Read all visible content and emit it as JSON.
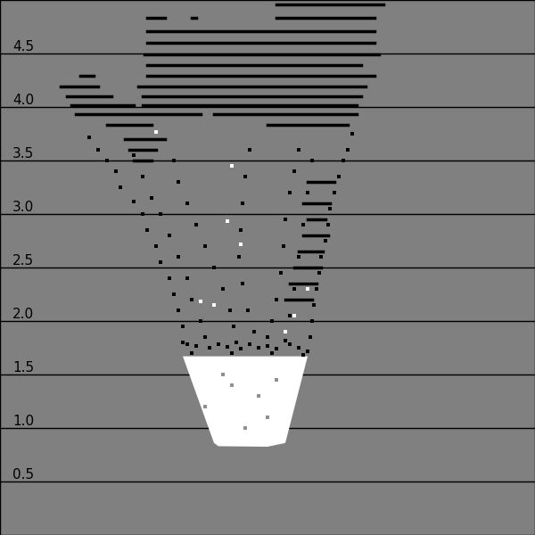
{
  "chart_data": {
    "type": "scatter",
    "tick_labels": "y",
    "grid": true,
    "xlim": [
      0,
      600
    ],
    "ylim": [
      0,
      5
    ],
    "yticks": [
      0.5,
      {
        "value": 1,
        "label": "1.0"
      },
      1.5,
      {
        "value": 2,
        "label": "2.0"
      },
      2.5,
      {
        "value": 3,
        "label": "3.0"
      },
      3.5,
      {
        "value": 4,
        "label": "4.0"
      },
      4.5
    ],
    "series": [
      {
        "type": "area",
        "color": "#ffffff",
        "x": [
          205,
          345,
          320,
          300,
          245,
          240
        ],
        "y": [
          1.67,
          1.67,
          0.86,
          0.825,
          0.83,
          0.86
        ]
      },
      {
        "type": "scatter",
        "color": "#909090",
        "marker": "s",
        "x": [
          260,
          290,
          230,
          300,
          275,
          250,
          310
        ],
        "y": [
          1.4,
          1.3,
          1.2,
          1.1,
          1.0,
          1.5,
          1.45
        ]
      },
      {
        "type": "line",
        "color": "#000000",
        "line_style": "solid",
        "x": [
          310,
          430,
          null,
          165,
          185,
          null,
          215,
          220,
          null,
          310,
          420,
          null,
          165,
          420,
          null,
          165,
          420,
          null,
          162,
          425,
          null,
          165,
          405,
          null,
          90,
          105,
          null,
          165,
          420,
          null,
          68,
          110,
          null,
          155,
          410,
          null,
          75,
          125,
          null,
          160,
          405,
          null,
          80,
          150,
          null,
          160,
          400,
          null,
          85,
          225,
          null,
          240,
          400,
          null,
          120,
          170,
          null,
          300,
          390,
          null,
          345,
          375,
          null,
          340,
          370,
          null,
          345,
          365,
          null,
          340,
          368,
          null,
          335,
          362,
          null,
          330,
          360,
          null,
          325,
          355,
          null,
          320,
          350,
          null,
          140,
          185,
          null,
          145,
          175,
          null,
          150,
          170
        ],
        "y": [
          4.958,
          4.958,
          null,
          4.833,
          4.833,
          null,
          4.833,
          4.833,
          null,
          4.833,
          4.833,
          null,
          4.708,
          4.708,
          null,
          4.6,
          4.6,
          null,
          4.49,
          4.49,
          null,
          4.392,
          4.392,
          null,
          4.29,
          4.29,
          null,
          4.29,
          4.29,
          null,
          4.19,
          4.19,
          null,
          4.19,
          4.19,
          null,
          4.1,
          4.1,
          null,
          4.1,
          4.1,
          null,
          4.017,
          4.017,
          null,
          4.017,
          4.017,
          null,
          3.933,
          3.933,
          null,
          3.933,
          3.933,
          null,
          3.833,
          3.833,
          null,
          3.833,
          3.833,
          null,
          3.3,
          3.3,
          null,
          3.1,
          3.1,
          null,
          2.95,
          2.95,
          null,
          2.8,
          2.8,
          null,
          2.65,
          2.65,
          null,
          2.5,
          2.5,
          null,
          2.35,
          2.35,
          null,
          2.2,
          2.2,
          null,
          3.7,
          3.7,
          null,
          3.6,
          3.6,
          null,
          3.5,
          3.5
        ]
      },
      {
        "type": "scatter",
        "color": "#000000",
        "marker": "s",
        "x": [
          100,
          110,
          120,
          130,
          135,
          150,
          160,
          165,
          175,
          180,
          190,
          195,
          200,
          205,
          205,
          395,
          390,
          385,
          380,
          375,
          370,
          368,
          365,
          360,
          358,
          355,
          352,
          350,
          348,
          345,
          150,
          160,
          170,
          180,
          190,
          200,
          210,
          215,
          225,
          230,
          195,
          200,
          210,
          220,
          230,
          240,
          250,
          258,
          262,
          265,
          280,
          275,
          272,
          270,
          268,
          272,
          278,
          285,
          335,
          330,
          325,
          320,
          318,
          315,
          310,
          305,
          300,
          350,
          345,
          340,
          335,
          330,
          325,
          320,
          210,
          220,
          235,
          245,
          255,
          270,
          280,
          290,
          300,
          310,
          325,
          335,
          215,
          260,
          305,
          340
        ],
        "y": [
          3.72,
          3.6,
          3.5,
          3.4,
          3.25,
          3.12,
          3.0,
          2.85,
          2.7,
          2.55,
          2.4,
          2.25,
          2.1,
          1.95,
          1.8,
          3.75,
          3.6,
          3.5,
          3.35,
          3.2,
          3.05,
          2.9,
          2.75,
          2.6,
          2.45,
          2.3,
          2.15,
          2.0,
          1.85,
          1.72,
          3.55,
          3.35,
          3.15,
          3.0,
          2.8,
          2.6,
          2.4,
          2.2,
          2.0,
          1.85,
          3.5,
          3.3,
          3.1,
          2.9,
          2.7,
          2.5,
          2.3,
          2.1,
          1.95,
          1.8,
          3.6,
          3.35,
          3.1,
          2.85,
          2.6,
          2.35,
          2.1,
          1.9,
          3.6,
          3.4,
          3.2,
          2.95,
          2.7,
          2.45,
          2.2,
          2.0,
          1.85,
          3.5,
          3.2,
          2.9,
          2.6,
          2.3,
          2.05,
          1.82,
          1.78,
          1.77,
          1.75,
          1.78,
          1.76,
          1.74,
          1.78,
          1.75,
          1.77,
          1.74,
          1.78,
          1.75,
          1.7,
          1.7,
          1.7,
          1.68
        ]
      },
      {
        "type": "scatter",
        "color": "#ffffff",
        "marker": "s",
        "x": [
          175,
          260,
          255,
          270,
          225,
          240,
          345,
          320,
          330
        ],
        "y": [
          3.77,
          3.45,
          2.93,
          2.72,
          2.18,
          2.15,
          2.3,
          1.9,
          2.05
        ]
      }
    ]
  }
}
